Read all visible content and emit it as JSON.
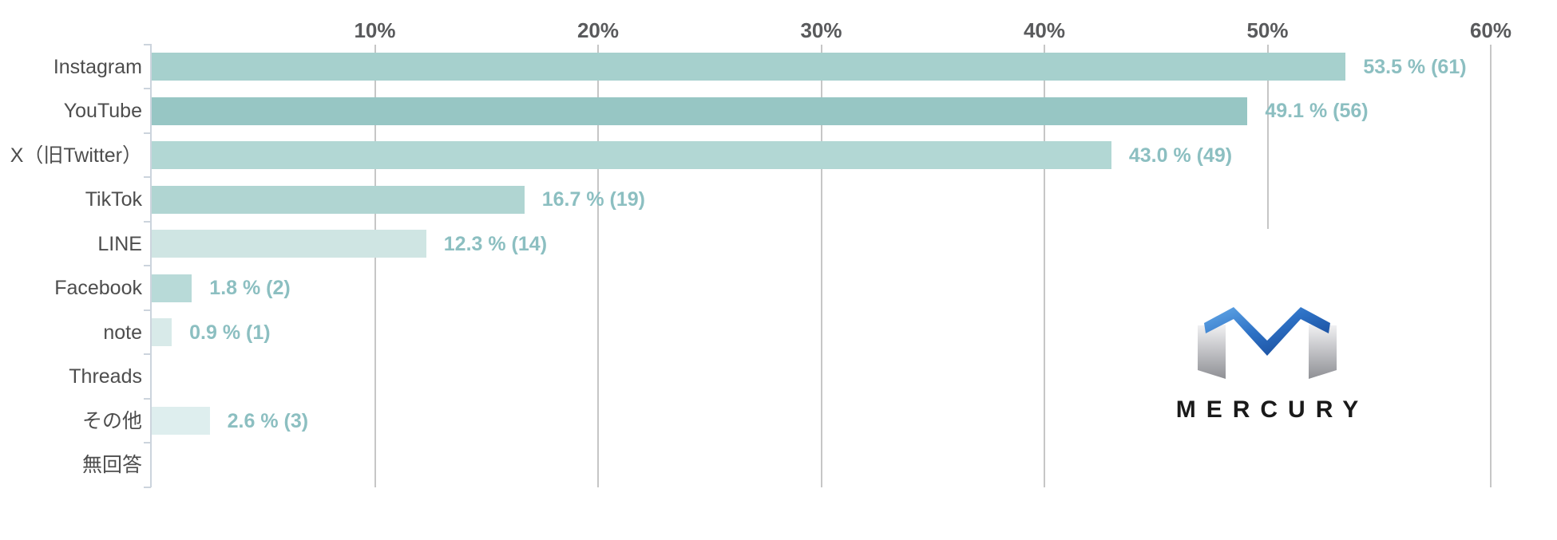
{
  "page": {
    "background_color": "#ffffff"
  },
  "chart_data": {
    "type": "bar",
    "orientation": "horizontal",
    "title": "",
    "xlabel": "",
    "ylabel": "",
    "categories": [
      "Instagram",
      "YouTube",
      "X（旧Twitter）",
      "TikTok",
      "LINE",
      "Facebook",
      "note",
      "Threads",
      "その他",
      "無回答"
    ],
    "values": [
      53.5,
      49.1,
      43.0,
      16.7,
      12.3,
      1.8,
      0.9,
      0,
      2.6,
      0
    ],
    "counts": [
      61,
      56,
      49,
      19,
      14,
      2,
      1,
      0,
      3,
      0
    ],
    "value_labels": [
      "53.5 % (61)",
      "49.1 % (56)",
      "43.0 % (49)",
      "16.7 % (19)",
      "12.3 % (14)",
      "1.8 % (2)",
      "0.9 % (1)",
      "",
      "2.6 % (3)",
      ""
    ],
    "bar_colors": [
      "#a6d0cd",
      "#97c6c4",
      "#b2d7d4",
      "#b0d5d2",
      "#cfe5e3",
      "#b8dad8",
      "#d8eae9",
      "",
      "#deeeee",
      ""
    ],
    "xlim": [
      0,
      60
    ],
    "x_tick_labels": [
      "10%",
      "20%",
      "30%",
      "40%",
      "50%",
      "60%"
    ],
    "x_tick_values": [
      10,
      20,
      30,
      40,
      50,
      60
    ],
    "grid": "vertical",
    "axis_position": "top",
    "legend": "none",
    "colors": {
      "value_label": "#8cbfc1",
      "tick_label": "#595a5c",
      "category_label": "#4d4d4d",
      "gridline": "#c6c6c6",
      "axis_line": "#ccd4dd"
    }
  },
  "logo": {
    "text": "MERCURY",
    "colors": {
      "blue_light": "#66abe9",
      "blue_mid": "#2e72c6",
      "blue_dark": "#123f8c",
      "gray_light": "#f1f1f3",
      "gray_dark": "#8f9095",
      "text": "#1a1a1a"
    }
  }
}
